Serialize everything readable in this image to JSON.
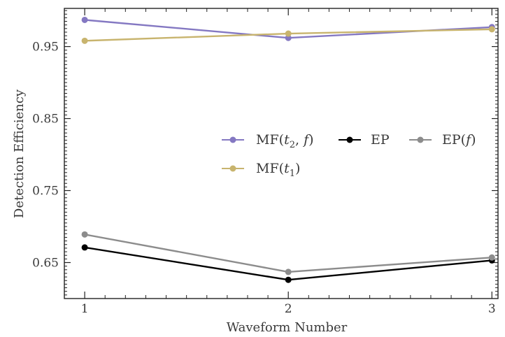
{
  "chart_data": {
    "type": "line",
    "title": "",
    "xlabel": "Waveform Number",
    "ylabel": "Detection Efficiency",
    "x": [
      1,
      2,
      3
    ],
    "xticks": [
      "1",
      "2",
      "3"
    ],
    "yticks": [
      "0.65",
      "0.75",
      "0.85",
      "0.95"
    ],
    "ytick_values": [
      0.65,
      0.75,
      0.85,
      0.95
    ],
    "xlim": [
      0.9,
      3.03
    ],
    "ylim": [
      0.6,
      1.003
    ],
    "grid": false,
    "legend_position": "right",
    "series": [
      {
        "name": "MF(t2, f)",
        "label_main": "MF(",
        "label_sub": "2",
        "label_rest": ", ",
        "var1": "t",
        "var2": "f",
        "label_close": ")",
        "color": "#8478c2",
        "values": [
          0.987,
          0.962,
          0.977
        ]
      },
      {
        "name": "EP",
        "label_main": "EP",
        "color": "#000000",
        "values": [
          0.671,
          0.626,
          0.653
        ]
      },
      {
        "name": "EP(f)",
        "label_main": "EP(",
        "var1": "f",
        "label_close": ")",
        "color": "#8c8c8c",
        "values": [
          0.689,
          0.637,
          0.657
        ]
      },
      {
        "name": "MF(t1)",
        "label_main": "MF(",
        "var1": "t",
        "label_sub": "1",
        "label_close": ")",
        "color": "#c8b46e",
        "values": [
          0.958,
          0.968,
          0.974
        ]
      }
    ]
  }
}
